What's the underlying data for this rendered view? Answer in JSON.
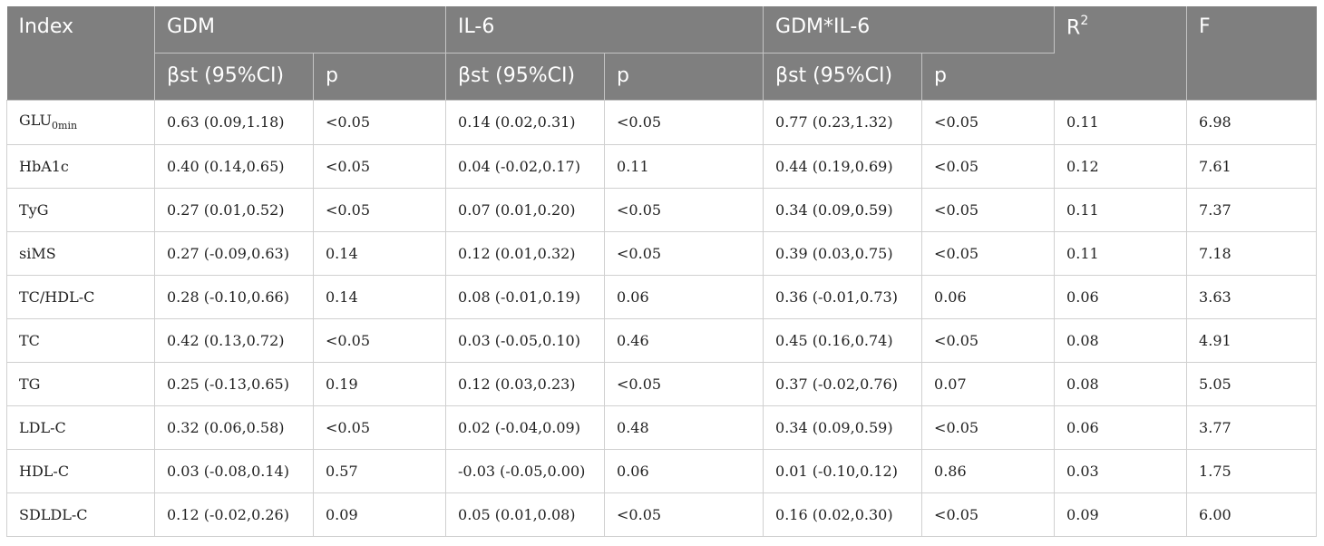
{
  "table": {
    "headers": {
      "index": "Index",
      "groups": [
        "GDM",
        "IL-6",
        "GDM*IL-6"
      ],
      "r2_base": "R",
      "r2_sup": "2",
      "f": "F",
      "sub_beta": "βst (95%CI)",
      "sub_p": "p"
    },
    "rows": [
      {
        "index": "GLU",
        "index_sub": "0min",
        "gdm_b": "0.63 (0.09,1.18)",
        "gdm_p": "<0.05",
        "il6_b": "0.14 (0.02,0.31)",
        "il6_p": "<0.05",
        "int_b": "0.77 (0.23,1.32)",
        "int_p": "<0.05",
        "r2": "0.11",
        "f": "6.98"
      },
      {
        "index": "HbA1c",
        "index_sub": "",
        "gdm_b": "0.40 (0.14,0.65)",
        "gdm_p": "<0.05",
        "il6_b": "0.04 (-0.02,0.17)",
        "il6_p": "0.11",
        "int_b": "0.44 (0.19,0.69)",
        "int_p": "<0.05",
        "r2": "0.12",
        "f": "7.61"
      },
      {
        "index": "TyG",
        "index_sub": "",
        "gdm_b": "0.27 (0.01,0.52)",
        "gdm_p": "<0.05",
        "il6_b": "0.07 (0.01,0.20)",
        "il6_p": "<0.05",
        "int_b": "0.34 (0.09,0.59)",
        "int_p": "<0.05",
        "r2": "0.11",
        "f": "7.37"
      },
      {
        "index": "siMS",
        "index_sub": "",
        "gdm_b": "0.27 (-0.09,0.63)",
        "gdm_p": "0.14",
        "il6_b": "0.12 (0.01,0.32)",
        "il6_p": "<0.05",
        "int_b": "0.39 (0.03,0.75)",
        "int_p": "<0.05",
        "r2": "0.11",
        "f": "7.18"
      },
      {
        "index": "TC/HDL-C",
        "index_sub": "",
        "gdm_b": "0.28 (-0.10,0.66)",
        "gdm_p": "0.14",
        "il6_b": "0.08 (-0.01,0.19)",
        "il6_p": "0.06",
        "int_b": "0.36 (-0.01,0.73)",
        "int_p": "0.06",
        "r2": "0.06",
        "f": "3.63"
      },
      {
        "index": "TC",
        "index_sub": "",
        "gdm_b": "0.42 (0.13,0.72)",
        "gdm_p": "<0.05",
        "il6_b": "0.03 (-0.05,0.10)",
        "il6_p": "0.46",
        "int_b": "0.45 (0.16,0.74)",
        "int_p": "<0.05",
        "r2": "0.08",
        "f": "4.91"
      },
      {
        "index": "TG",
        "index_sub": "",
        "gdm_b": "0.25 (-0.13,0.65)",
        "gdm_p": "0.19",
        "il6_b": "0.12 (0.03,0.23)",
        "il6_p": "<0.05",
        "int_b": "0.37 (-0.02,0.76)",
        "int_p": "0.07",
        "r2": "0.08",
        "f": "5.05"
      },
      {
        "index": "LDL-C",
        "index_sub": "",
        "gdm_b": "0.32 (0.06,0.58)",
        "gdm_p": "<0.05",
        "il6_b": "0.02 (-0.04,0.09)",
        "il6_p": "0.48",
        "int_b": "0.34 (0.09,0.59)",
        "int_p": "<0.05",
        "r2": "0.06",
        "f": "3.77"
      },
      {
        "index": "HDL-C",
        "index_sub": "",
        "gdm_b": "0.03 (-0.08,0.14)",
        "gdm_p": "0.57",
        "il6_b": "-0.03 (-0.05,0.00)",
        "il6_p": "0.06",
        "int_b": "0.01 (-0.10,0.12)",
        "int_p": "0.86",
        "r2": "0.03",
        "f": "1.75"
      },
      {
        "index": "SDLDL-C",
        "index_sub": "",
        "gdm_b": "0.12 (-0.02,0.26)",
        "gdm_p": "0.09",
        "il6_b": "0.05 (0.01,0.08)",
        "il6_p": "<0.05",
        "int_b": "0.16 (0.02,0.30)",
        "int_p": "<0.05",
        "r2": "0.09",
        "f": "6.00"
      }
    ]
  }
}
